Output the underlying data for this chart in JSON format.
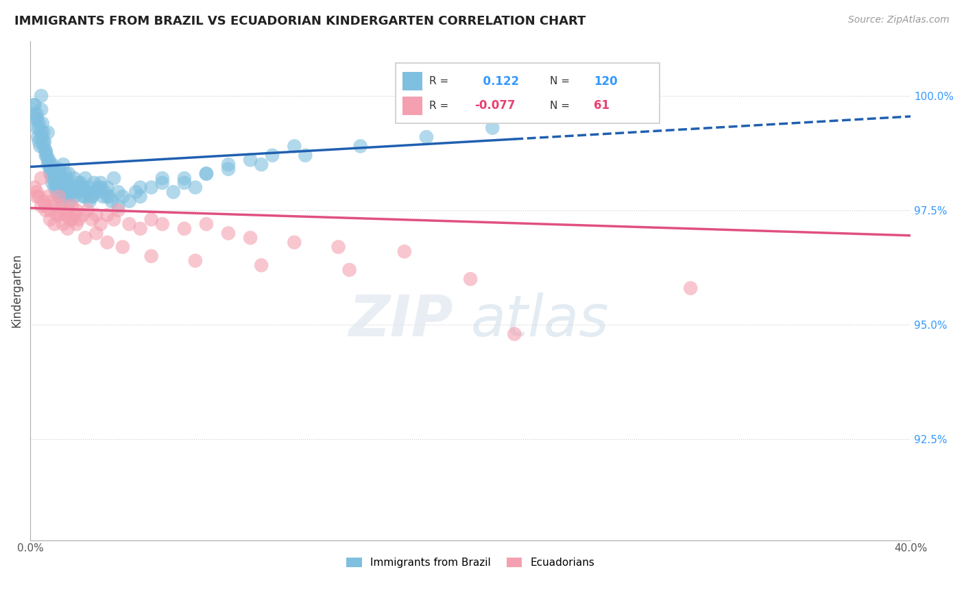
{
  "title": "IMMIGRANTS FROM BRAZIL VS ECUADORIAN KINDERGARTEN CORRELATION CHART",
  "source_text": "Source: ZipAtlas.com",
  "ylabel": "Kindergarten",
  "xmin": 0.0,
  "xmax": 40.0,
  "ymin": 90.3,
  "ymax": 101.2,
  "blue_R": 0.122,
  "blue_N": 120,
  "pink_R": -0.077,
  "pink_N": 61,
  "blue_color": "#7fbfdf",
  "pink_color": "#f4a0b0",
  "blue_line_color": "#2060b0",
  "pink_line_color": "#e05080",
  "legend1_label": "Immigrants from Brazil",
  "legend2_label": "Ecuadorians",
  "blue_line_x0": 0.0,
  "blue_line_y0": 98.45,
  "blue_line_x1": 40.0,
  "blue_line_y1": 99.55,
  "blue_solid_end": 22.0,
  "pink_line_x0": 0.0,
  "pink_line_y0": 97.55,
  "pink_line_x1": 40.0,
  "pink_line_y1": 96.95,
  "ytick_vals": [
    92.5,
    95.0,
    97.5,
    100.0
  ],
  "ytick_labels": [
    "92.5%",
    "95.0%",
    "97.5%",
    "100.0%"
  ],
  "blue_scatter_x": [
    0.15,
    0.2,
    0.25,
    0.3,
    0.35,
    0.4,
    0.45,
    0.5,
    0.5,
    0.55,
    0.6,
    0.65,
    0.7,
    0.75,
    0.8,
    0.85,
    0.9,
    0.95,
    1.0,
    1.05,
    1.1,
    1.15,
    1.2,
    1.25,
    1.3,
    1.35,
    1.4,
    1.45,
    1.5,
    1.55,
    1.6,
    1.65,
    1.7,
    1.75,
    1.8,
    1.9,
    2.0,
    2.1,
    2.2,
    2.3,
    2.4,
    2.5,
    2.6,
    2.7,
    2.8,
    2.9,
    3.0,
    3.1,
    3.2,
    3.3,
    3.4,
    3.5,
    3.6,
    3.7,
    3.8,
    4.0,
    4.2,
    4.5,
    4.8,
    5.0,
    5.5,
    6.0,
    6.5,
    7.0,
    7.5,
    8.0,
    9.0,
    10.0,
    11.0,
    12.0,
    0.3,
    0.4,
    0.5,
    0.6,
    0.7,
    0.8,
    0.9,
    1.0,
    1.1,
    1.2,
    1.3,
    1.4,
    1.5,
    1.6,
    1.7,
    1.8,
    1.9,
    2.0,
    2.1,
    2.2,
    2.3,
    2.4,
    2.5,
    2.6,
    2.7,
    2.8,
    3.0,
    3.2,
    3.5,
    4.0,
    5.0,
    6.0,
    7.0,
    8.0,
    9.0,
    10.5,
    12.5,
    15.0,
    18.0,
    21.0,
    0.2,
    0.3,
    0.4,
    0.5,
    0.6,
    0.7,
    0.8,
    0.9,
    1.0,
    1.2
  ],
  "blue_scatter_y": [
    99.8,
    99.6,
    99.5,
    99.3,
    99.1,
    99.0,
    98.9,
    100.0,
    99.7,
    99.4,
    99.2,
    99.0,
    98.8,
    98.7,
    99.2,
    98.6,
    98.5,
    98.4,
    98.5,
    98.3,
    98.2,
    98.1,
    98.3,
    98.2,
    98.4,
    98.3,
    98.2,
    98.1,
    98.5,
    98.0,
    98.3,
    98.2,
    98.1,
    98.3,
    98.0,
    97.9,
    98.2,
    98.0,
    98.1,
    98.0,
    97.8,
    98.2,
    97.9,
    98.0,
    97.8,
    98.1,
    97.9,
    98.0,
    98.1,
    97.8,
    97.9,
    98.0,
    97.8,
    97.7,
    98.2,
    97.6,
    97.8,
    97.7,
    97.9,
    97.8,
    98.0,
    98.1,
    97.9,
    98.2,
    98.0,
    98.3,
    98.5,
    98.6,
    98.7,
    98.9,
    99.5,
    99.3,
    99.1,
    98.9,
    98.7,
    98.5,
    98.3,
    98.1,
    98.0,
    97.9,
    97.8,
    97.7,
    98.0,
    97.9,
    97.8,
    97.7,
    97.9,
    97.8,
    98.0,
    97.9,
    98.1,
    98.0,
    97.8,
    97.9,
    97.7,
    97.8,
    97.9,
    98.0,
    97.8,
    97.9,
    98.0,
    98.2,
    98.1,
    98.3,
    98.4,
    98.5,
    98.7,
    98.9,
    99.1,
    99.3,
    99.8,
    99.6,
    99.4,
    99.2,
    99.0,
    98.8,
    98.6,
    98.4,
    98.2,
    98.0
  ],
  "pink_scatter_x": [
    0.2,
    0.3,
    0.4,
    0.5,
    0.6,
    0.7,
    0.8,
    0.9,
    1.0,
    1.1,
    1.2,
    1.3,
    1.4,
    1.5,
    1.6,
    1.7,
    1.8,
    1.9,
    2.0,
    2.1,
    2.2,
    2.4,
    2.6,
    2.8,
    3.0,
    3.2,
    3.5,
    3.8,
    4.0,
    4.5,
    5.0,
    5.5,
    6.0,
    7.0,
    8.0,
    9.0,
    10.0,
    12.0,
    14.0,
    17.0,
    0.3,
    0.5,
    0.7,
    0.9,
    1.1,
    1.3,
    1.5,
    1.7,
    1.9,
    2.1,
    2.5,
    3.0,
    3.5,
    4.2,
    5.5,
    7.5,
    10.5,
    14.5,
    20.0,
    30.0,
    22.0
  ],
  "pink_scatter_y": [
    98.0,
    97.9,
    97.8,
    98.2,
    97.7,
    97.6,
    97.8,
    97.5,
    97.7,
    97.6,
    97.4,
    97.8,
    97.5,
    97.6,
    97.4,
    97.5,
    97.3,
    97.6,
    97.4,
    97.5,
    97.3,
    97.4,
    97.5,
    97.3,
    97.4,
    97.2,
    97.4,
    97.3,
    97.5,
    97.2,
    97.1,
    97.3,
    97.2,
    97.1,
    97.2,
    97.0,
    96.9,
    96.8,
    96.7,
    96.6,
    97.8,
    97.6,
    97.5,
    97.3,
    97.2,
    97.4,
    97.2,
    97.1,
    97.3,
    97.2,
    96.9,
    97.0,
    96.8,
    96.7,
    96.5,
    96.4,
    96.3,
    96.2,
    96.0,
    95.8,
    94.8
  ]
}
